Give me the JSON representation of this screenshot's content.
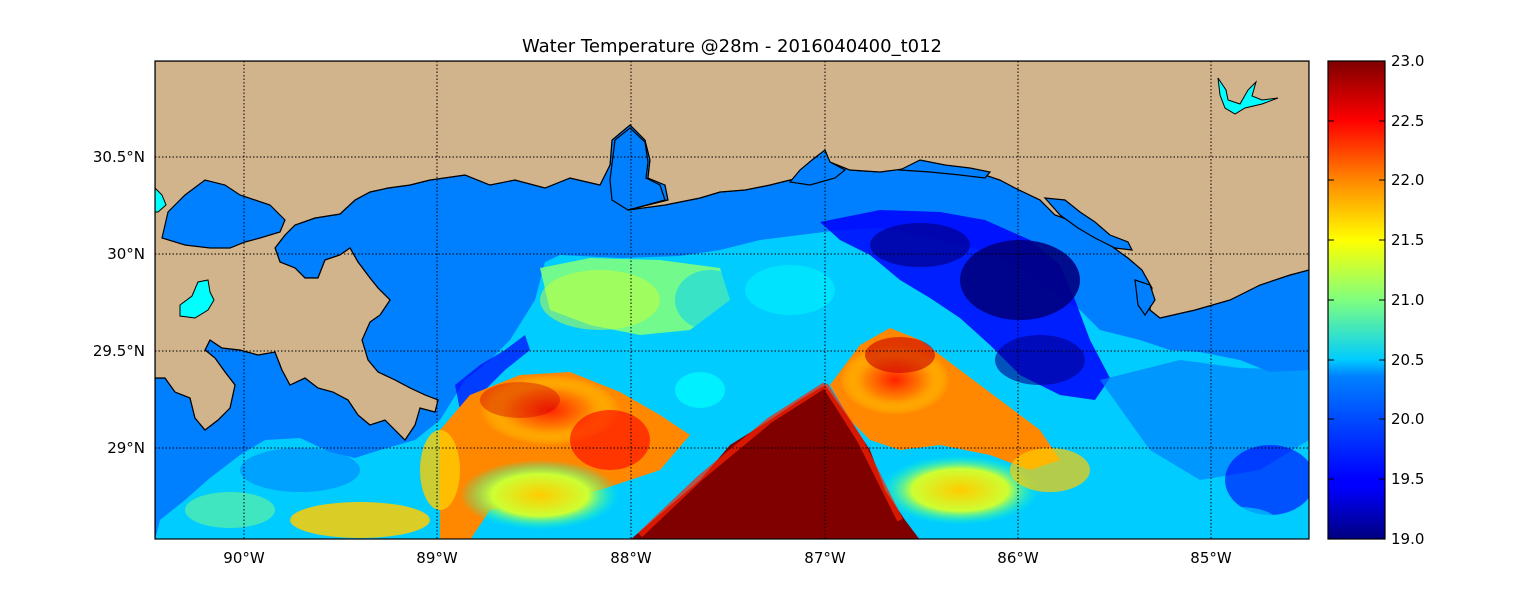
{
  "title": "Water Temperature @28m - 2016040400_t012",
  "map": {
    "lon_range": [
      -90.5,
      -84.5
    ],
    "lat_range": [
      28.55,
      31.0
    ],
    "lon_ticks": [
      "90°W",
      "89°W",
      "88°W",
      "87°W",
      "86°W",
      "85°W"
    ],
    "lon_tick_values": [
      -90,
      -89,
      -88,
      -87,
      -86,
      -85
    ],
    "lat_ticks": [
      "30.5°N",
      "30°N",
      "29.5°N",
      "29°N"
    ],
    "lat_tick_values": [
      30.5,
      30.0,
      29.5,
      29.0
    ],
    "grid": "dotted",
    "land_color": "#d2b48c",
    "lake_color": "#00ffff",
    "water_default_color": "#0080ff"
  },
  "colorbar": {
    "min": 19.0,
    "max": 23.0,
    "colormap": "jet",
    "tick_labels": [
      "23.0",
      "22.5",
      "22.0",
      "21.5",
      "21.0",
      "20.5",
      "20.0",
      "19.5",
      "19.0"
    ]
  }
}
